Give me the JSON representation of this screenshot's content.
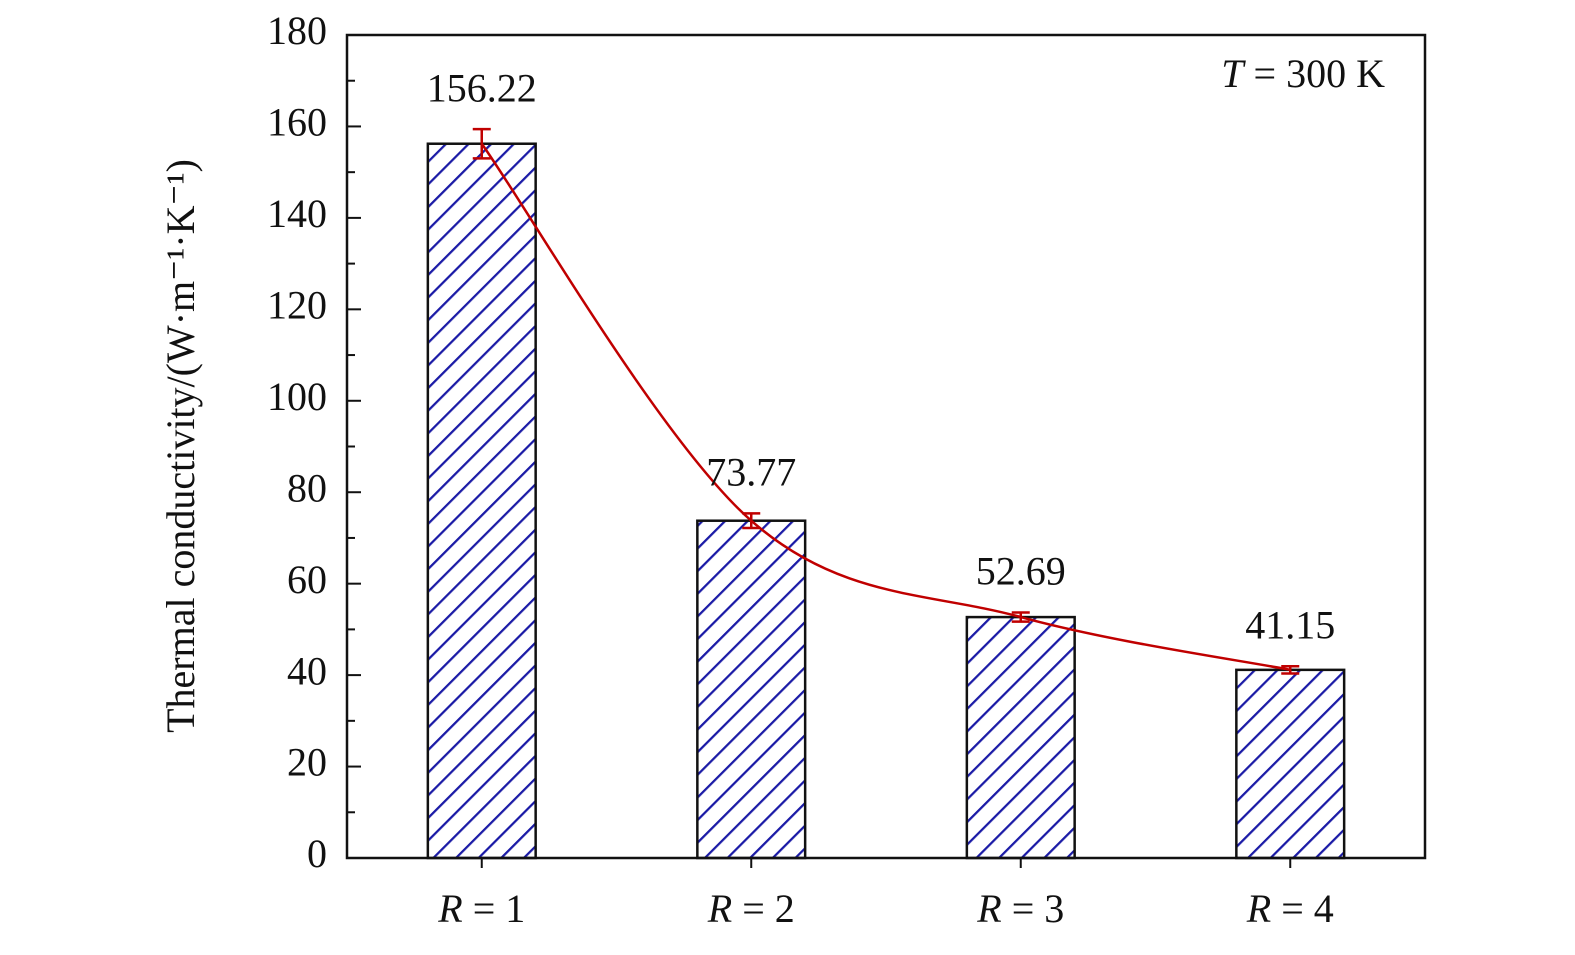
{
  "chart_data": {
    "type": "bar",
    "ylabel": "Thermal conductivity/(W·m⁻¹·K⁻¹)",
    "annotation": "T = 300 K",
    "categories": [
      "R = 1",
      "R = 2",
      "R = 3",
      "R = 4"
    ],
    "values": [
      156.22,
      73.77,
      52.69,
      41.15
    ],
    "errors": [
      3.2,
      1.6,
      1.0,
      0.8
    ],
    "color": "#1a1aa6",
    "hatch": true,
    "fit_line": true,
    "fit_color": "#c00000",
    "ylim": [
      0,
      180
    ],
    "yticks": [
      0,
      20,
      40,
      60,
      80,
      100,
      120,
      140,
      160,
      180
    ],
    "yminorticks": [
      10,
      30,
      50,
      70,
      90,
      110,
      130,
      150,
      170
    ],
    "grid": false
  }
}
